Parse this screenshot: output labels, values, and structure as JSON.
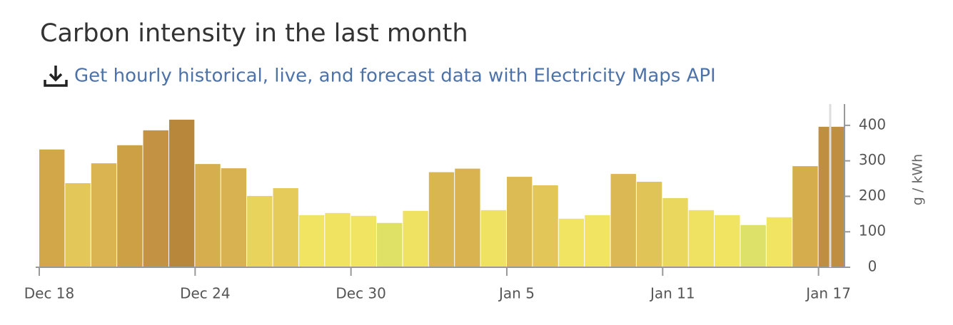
{
  "chart_data": {
    "type": "bar",
    "title": "Carbon intensity in the last month",
    "link": "Get hourly historical, live, and forecast data with Electricity Maps API",
    "y_label": "g / kWh",
    "categories": [
      "Dec 18",
      null,
      null,
      null,
      null,
      null,
      "Dec 24",
      null,
      null,
      null,
      null,
      null,
      "Dec 30",
      null,
      null,
      null,
      null,
      null,
      "Jan 5",
      null,
      null,
      null,
      null,
      null,
      "Jan 11",
      null,
      null,
      null,
      null,
      null,
      "Jan 17"
    ],
    "values": [
      332,
      237,
      293,
      344,
      386,
      416,
      291,
      279,
      201,
      223,
      147,
      153,
      145,
      125,
      159,
      268,
      278,
      161,
      255,
      231,
      137,
      147,
      263,
      241,
      195,
      161,
      147,
      119,
      141,
      285,
      396
    ],
    "colors": [
      "#d2a74a",
      "#e3c758",
      "#d9b450",
      "#cda046",
      "#c39242",
      "#b9873c",
      "#d6ae4e",
      "#d8b250",
      "#e8d35d",
      "#e4cb5a",
      "#f0e462",
      "#f0e362",
      "#f0e462",
      "#dfe066",
      "#efe162",
      "#dab651",
      "#d8b350",
      "#efe162",
      "#dcbb54",
      "#e2c658",
      "#f0e462",
      "#f0e462",
      "#dbb853",
      "#e1c457",
      "#ead75d",
      "#efe162",
      "#f0e462",
      "#dde16a",
      "#f0e462",
      "#d5ad4d",
      "#c08e40"
    ],
    "ylim": [
      0,
      460
    ],
    "yticks": [
      0,
      100,
      200,
      300,
      400
    ]
  }
}
